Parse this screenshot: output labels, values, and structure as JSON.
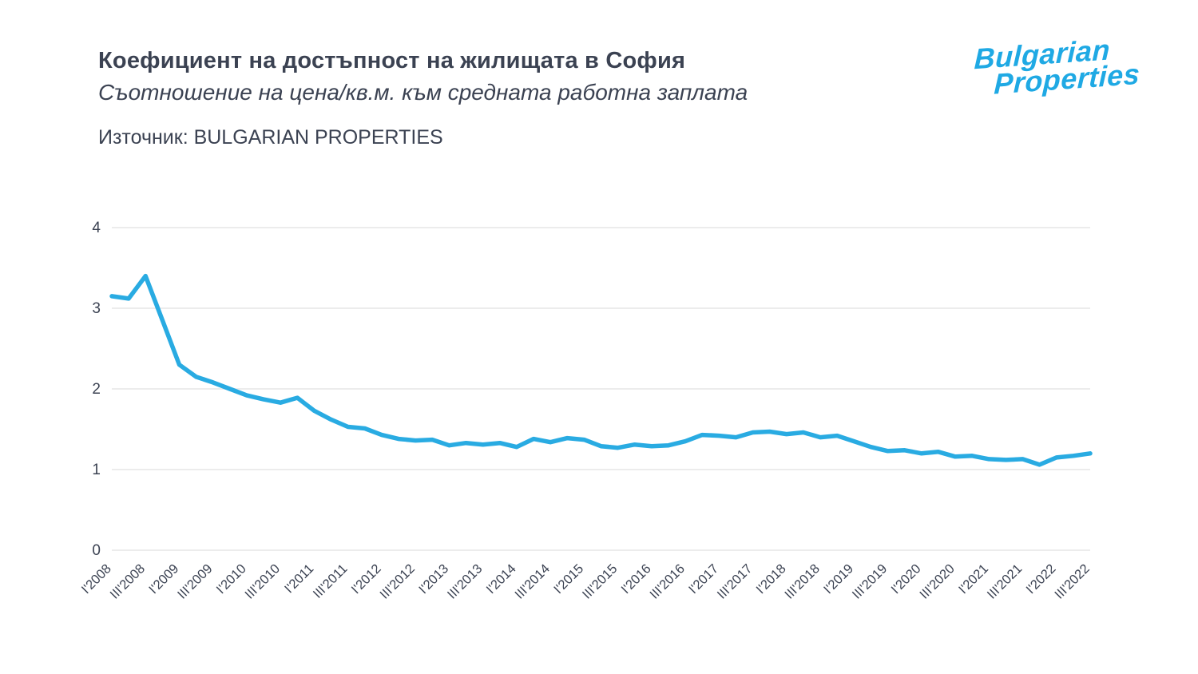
{
  "header": {
    "title": "Коефициент на достъпност на жилищата в София",
    "subtitle": "Съотношение на цена/кв.м. към средната работна заплата",
    "source": "Източник: BULGARIAN PROPERTIES"
  },
  "logo": {
    "line1": "Bulgarian",
    "line2": "Properties",
    "color": "#1fa9e4"
  },
  "chart_data": {
    "type": "line",
    "title": "Коефициент на достъпност на жилищата в София",
    "xlabel": "",
    "ylabel": "",
    "ylim": [
      0,
      4
    ],
    "yticks": [
      0,
      1,
      2,
      3,
      4
    ],
    "grid": true,
    "legend": "none",
    "line_color": "#29abe2",
    "grid_color": "#e6e6e6",
    "tick_label_color": "#3b4252",
    "x_tick_labels": [
      "I'2008",
      "III'2008",
      "I'2009",
      "III'2009",
      "I'2010",
      "III'2010",
      "I'2011",
      "III'2011",
      "I'2012",
      "III'2012",
      "I'2013",
      "III'2013",
      "I'2014",
      "III'2014",
      "I'2015",
      "III'2015",
      "I'2016",
      "III'2016",
      "I'2017",
      "III'2017",
      "I'2018",
      "III'2018",
      "I'2019",
      "III'2019",
      "I'2020",
      "III'2020",
      "I'2021",
      "III'2021",
      "I'2022",
      "III'2022"
    ],
    "label_every_n_points": 2,
    "x_quarters": [
      "I'2008",
      "II'2008",
      "III'2008",
      "IV'2008",
      "I'2009",
      "II'2009",
      "III'2009",
      "IV'2009",
      "I'2010",
      "II'2010",
      "III'2010",
      "IV'2010",
      "I'2011",
      "II'2011",
      "III'2011",
      "IV'2011",
      "I'2012",
      "II'2012",
      "III'2012",
      "IV'2012",
      "I'2013",
      "II'2013",
      "III'2013",
      "IV'2013",
      "I'2014",
      "II'2014",
      "III'2014",
      "IV'2014",
      "I'2015",
      "II'2015",
      "III'2015",
      "IV'2015",
      "I'2016",
      "II'2016",
      "III'2016",
      "IV'2016",
      "I'2017",
      "II'2017",
      "III'2017",
      "IV'2017",
      "I'2018",
      "II'2018",
      "III'2018",
      "IV'2018",
      "I'2019",
      "II'2019",
      "III'2019",
      "IV'2019",
      "I'2020",
      "II'2020",
      "III'2020",
      "IV'2020",
      "I'2021",
      "II'2021",
      "III'2021",
      "IV'2021",
      "I'2022",
      "II'2022",
      "III'2022"
    ],
    "values": [
      3.15,
      3.12,
      3.4,
      2.85,
      2.3,
      2.15,
      2.08,
      2.0,
      1.92,
      1.87,
      1.83,
      1.89,
      1.73,
      1.62,
      1.53,
      1.51,
      1.43,
      1.38,
      1.36,
      1.37,
      1.3,
      1.33,
      1.31,
      1.33,
      1.28,
      1.38,
      1.34,
      1.39,
      1.37,
      1.29,
      1.27,
      1.31,
      1.29,
      1.3,
      1.35,
      1.43,
      1.42,
      1.4,
      1.46,
      1.47,
      1.44,
      1.46,
      1.4,
      1.42,
      1.35,
      1.28,
      1.23,
      1.24,
      1.2,
      1.22,
      1.16,
      1.17,
      1.13,
      1.12,
      1.13,
      1.06,
      1.15,
      1.17,
      1.2
    ]
  }
}
